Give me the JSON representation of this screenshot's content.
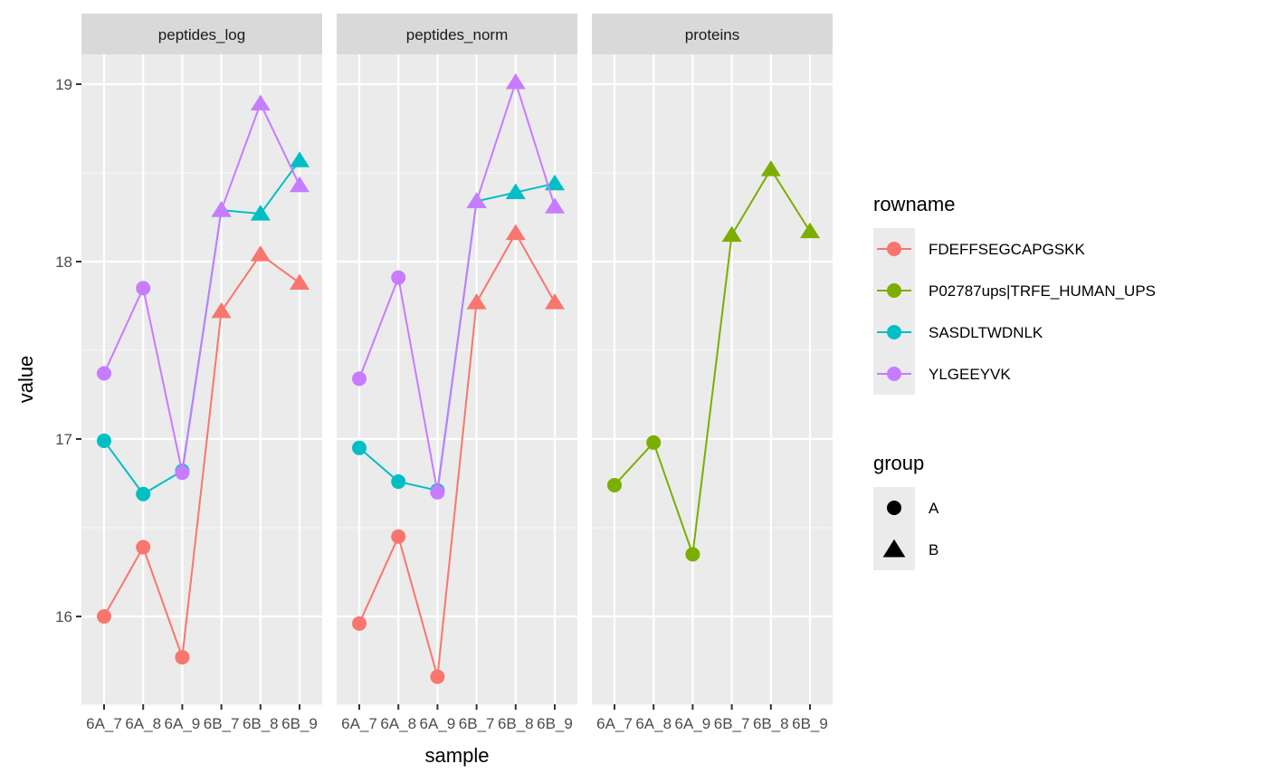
{
  "chart_data": {
    "type": "line",
    "xlabel": "sample",
    "ylabel": "value",
    "ylim": [
      15.5,
      19.17
    ],
    "yticks": [
      16,
      17,
      18,
      19
    ],
    "categories": [
      "6A_7",
      "6A_8",
      "6A_9",
      "6B_7",
      "6B_8",
      "6B_9"
    ],
    "groups": [
      "A",
      "A",
      "A",
      "B",
      "B",
      "B"
    ],
    "grid": true,
    "legend_position": "right",
    "panels": [
      {
        "title": "peptides_log",
        "series": [
          {
            "name": "FDEFFSEGCAPGSKK",
            "values": [
              16.0,
              16.39,
              15.77,
              17.72,
              18.04,
              17.88
            ]
          },
          {
            "name": "SASDLTWDNLK",
            "values": [
              16.99,
              16.69,
              16.82,
              18.29,
              18.27,
              18.57
            ]
          },
          {
            "name": "YLGEEYVK",
            "values": [
              17.37,
              17.85,
              16.81,
              18.29,
              18.89,
              18.43
            ]
          }
        ]
      },
      {
        "title": "peptides_norm",
        "series": [
          {
            "name": "FDEFFSEGCAPGSKK",
            "values": [
              15.96,
              16.45,
              15.66,
              17.77,
              18.16,
              17.77
            ]
          },
          {
            "name": "SASDLTWDNLK",
            "values": [
              16.95,
              16.76,
              16.71,
              18.34,
              18.39,
              18.44
            ]
          },
          {
            "name": "YLGEEYVK",
            "values": [
              17.34,
              17.91,
              16.7,
              18.34,
              19.01,
              18.31
            ]
          }
        ]
      },
      {
        "title": "proteins",
        "series": [
          {
            "name": "P02787ups|TRFE_HUMAN_UPS",
            "values": [
              16.74,
              16.98,
              16.35,
              18.15,
              18.52,
              18.17
            ]
          }
        ]
      }
    ],
    "legend": {
      "color_title": "rowname",
      "color_entries": [
        {
          "name": "FDEFFSEGCAPGSKK",
          "color": "#F8766D"
        },
        {
          "name": "P02787ups|TRFE_HUMAN_UPS",
          "color": "#7CAE00"
        },
        {
          "name": "SASDLTWDNLK",
          "color": "#00BFC4"
        },
        {
          "name": "YLGEEYVK",
          "color": "#C77CFF"
        }
      ],
      "shape_title": "group",
      "shape_entries": [
        {
          "name": "A",
          "shape": "circle"
        },
        {
          "name": "B",
          "shape": "triangle"
        }
      ]
    }
  }
}
